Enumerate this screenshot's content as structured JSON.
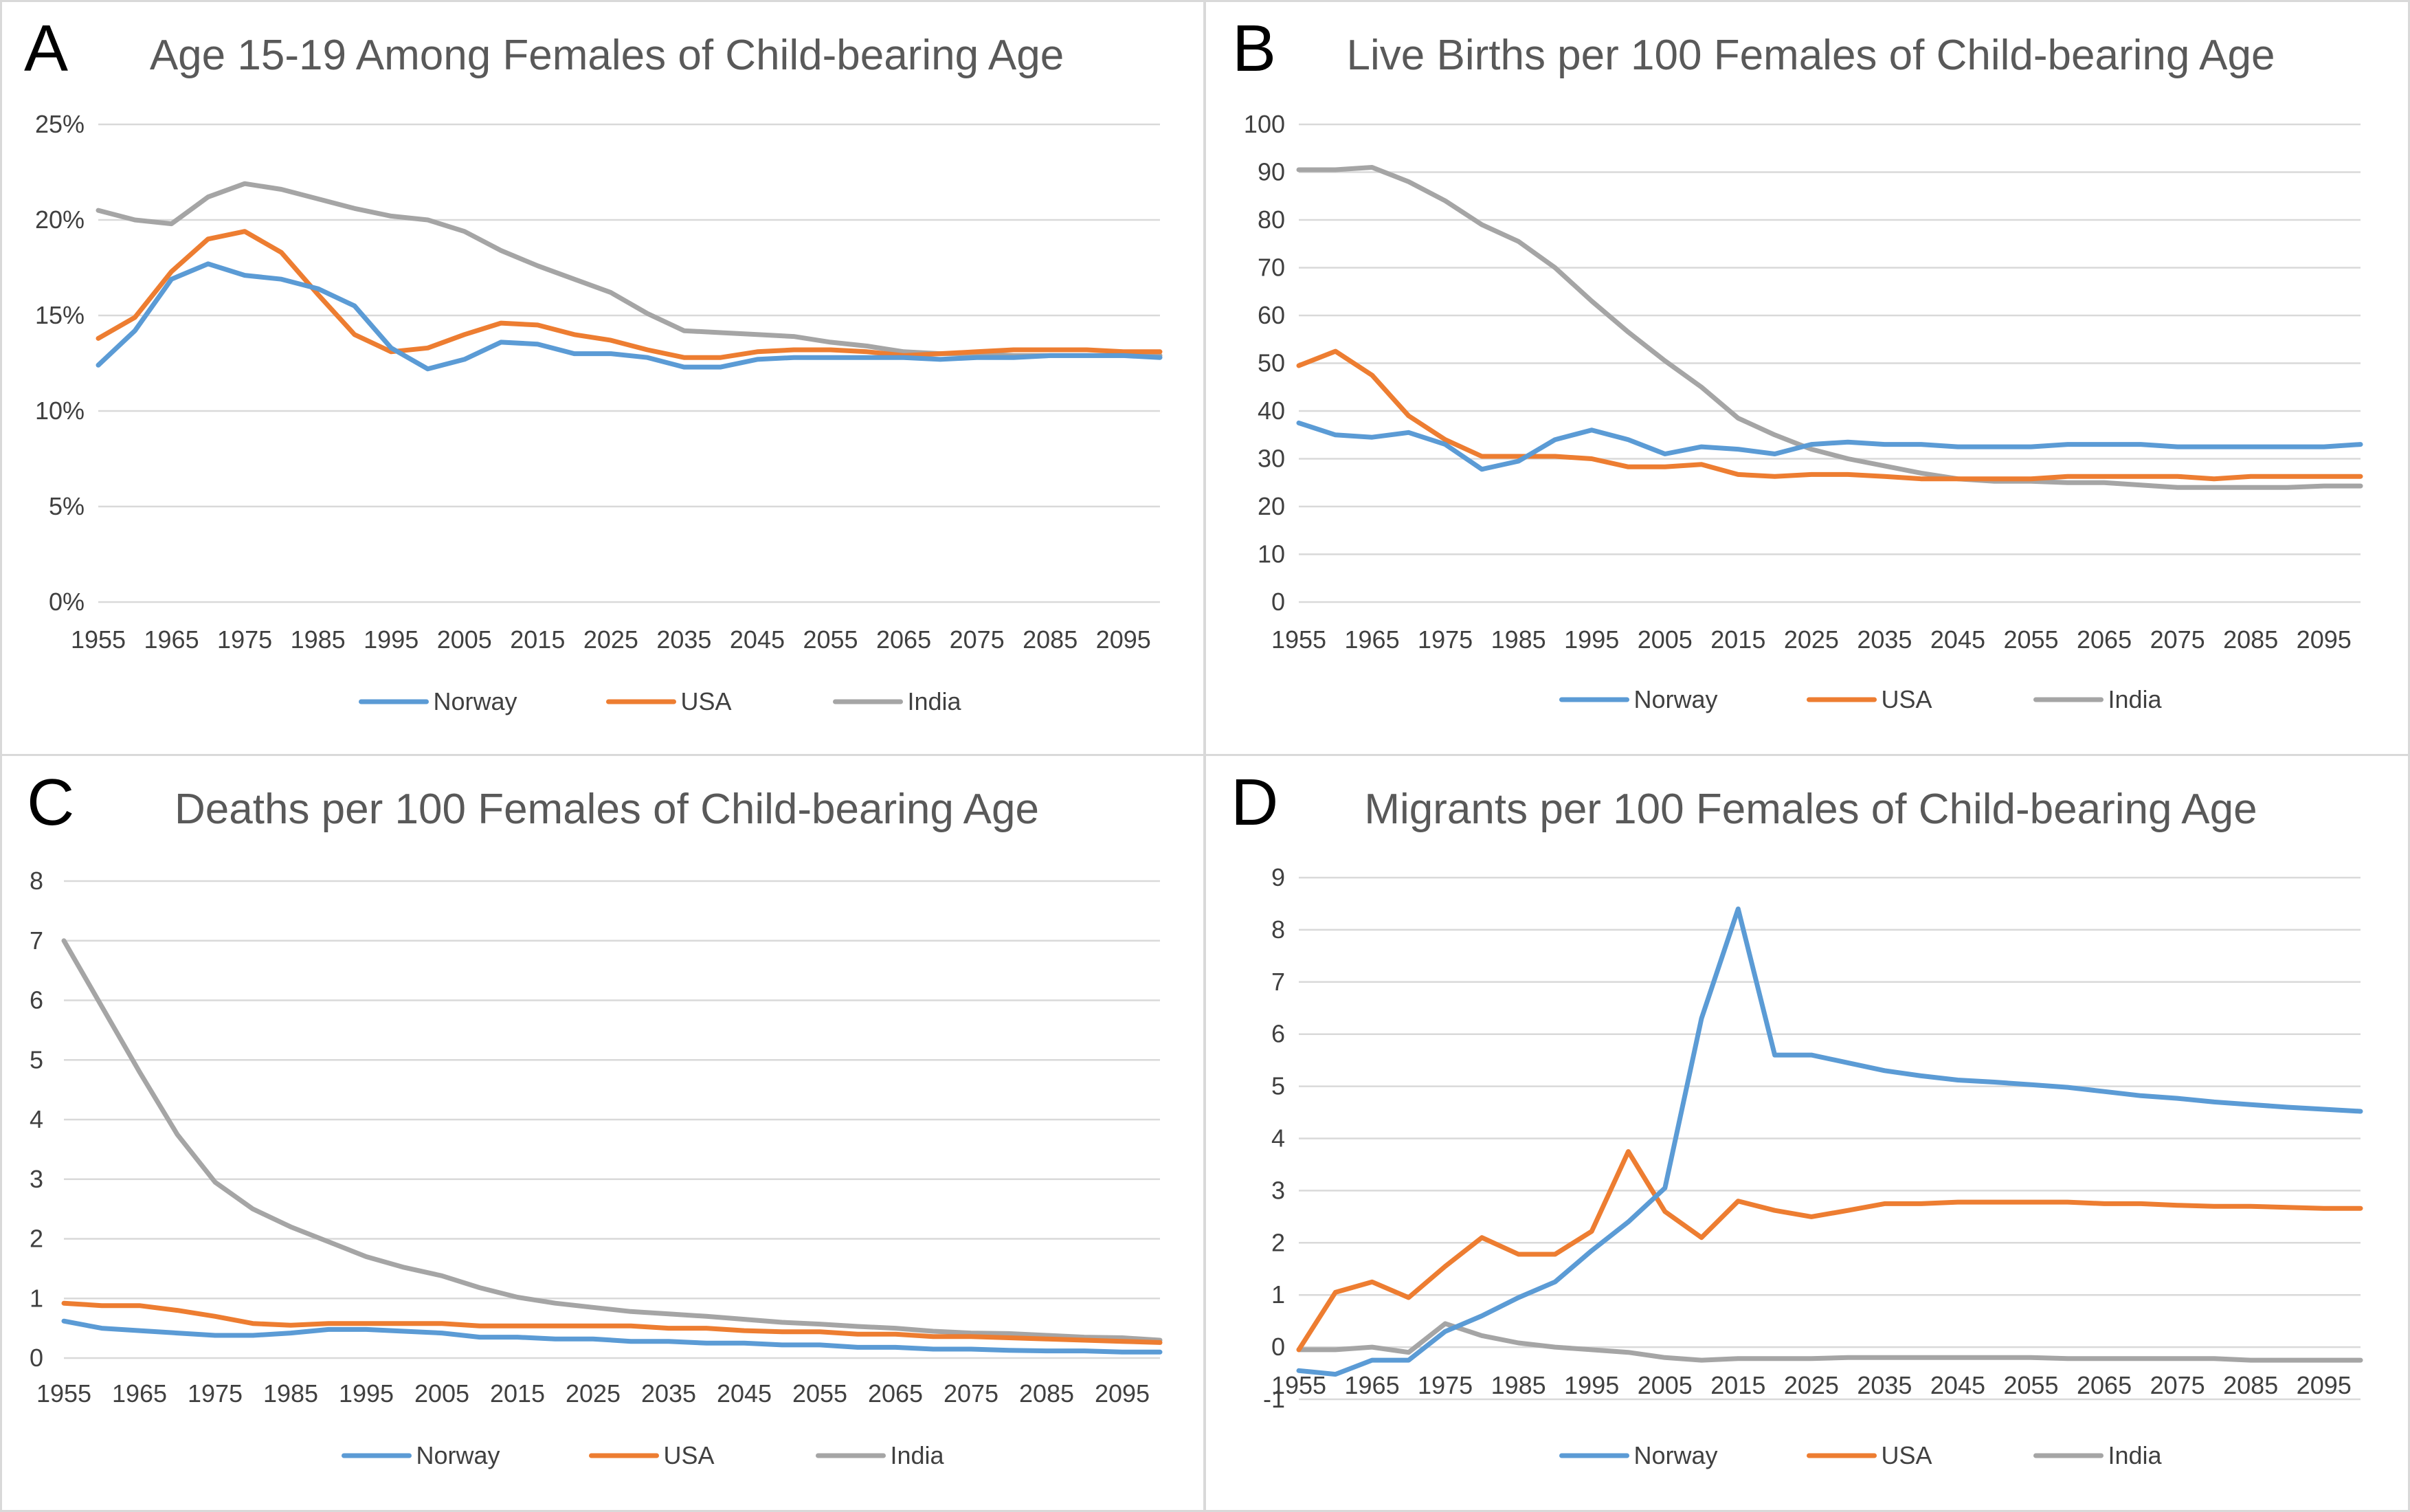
{
  "colors": {
    "Norway": "#5b9bd5",
    "USA": "#ed7d31",
    "India": "#a5a5a5"
  },
  "chart_data": [
    {
      "panel_label": "A",
      "type": "line",
      "title": "Age 15-19 Among Females of Child-bearing Age",
      "x": [
        1955,
        1960,
        1965,
        1970,
        1975,
        1980,
        1985,
        1990,
        1995,
        2000,
        2005,
        2010,
        2015,
        2020,
        2025,
        2030,
        2035,
        2040,
        2045,
        2050,
        2055,
        2060,
        2065,
        2070,
        2075,
        2080,
        2085,
        2090,
        2095,
        2100
      ],
      "x_tick_labels": [
        "1955",
        "1965",
        "1975",
        "1985",
        "1995",
        "2005",
        "2015",
        "2025",
        "2035",
        "2045",
        "2055",
        "2065",
        "2075",
        "2085",
        "2095"
      ],
      "y_ticks": [
        0,
        5,
        10,
        15,
        20,
        25
      ],
      "y_tick_labels": [
        "0%",
        "5%",
        "10%",
        "15%",
        "20%",
        "25%"
      ],
      "ylim": [
        0,
        25
      ],
      "grid": true,
      "legend_position": "bottom",
      "series": [
        {
          "name": "Norway",
          "values": [
            12.4,
            14.2,
            16.9,
            17.7,
            17.1,
            16.9,
            16.4,
            15.5,
            13.3,
            12.2,
            12.7,
            13.6,
            13.5,
            13.0,
            13.0,
            12.8,
            12.3,
            12.3,
            12.7,
            12.8,
            12.8,
            12.8,
            12.8,
            12.7,
            12.8,
            12.8,
            12.9,
            12.9,
            12.9,
            12.8
          ]
        },
        {
          "name": "USA",
          "values": [
            13.8,
            14.9,
            17.3,
            19.0,
            19.4,
            18.3,
            16.1,
            14.0,
            13.1,
            13.3,
            14.0,
            14.6,
            14.5,
            14.0,
            13.7,
            13.2,
            12.8,
            12.8,
            13.1,
            13.2,
            13.2,
            13.1,
            12.9,
            13.0,
            13.1,
            13.2,
            13.2,
            13.2,
            13.1,
            13.1
          ]
        },
        {
          "name": "India",
          "values": [
            20.5,
            20.0,
            19.8,
            21.2,
            21.9,
            21.6,
            21.1,
            20.6,
            20.2,
            20.0,
            19.4,
            18.4,
            17.6,
            16.9,
            16.2,
            15.1,
            14.2,
            14.1,
            14.0,
            13.9,
            13.6,
            13.4,
            13.1,
            13.0,
            13.0,
            12.9,
            12.9,
            12.9,
            12.9,
            12.9
          ]
        }
      ]
    },
    {
      "panel_label": "B",
      "type": "line",
      "title": "Live Births per 100 Females of Child-bearing Age",
      "x": [
        1955,
        1960,
        1965,
        1970,
        1975,
        1980,
        1985,
        1990,
        1995,
        2000,
        2005,
        2010,
        2015,
        2020,
        2025,
        2030,
        2035,
        2040,
        2045,
        2050,
        2055,
        2060,
        2065,
        2070,
        2075,
        2080,
        2085,
        2090,
        2095,
        2100
      ],
      "x_tick_labels": [
        "1955",
        "1965",
        "1975",
        "1985",
        "1995",
        "2005",
        "2015",
        "2025",
        "2035",
        "2045",
        "2055",
        "2065",
        "2075",
        "2085",
        "2095"
      ],
      "y_ticks": [
        0,
        10,
        20,
        30,
        40,
        50,
        60,
        70,
        80,
        90,
        100
      ],
      "y_tick_labels": [
        "0",
        "10",
        "20",
        "30",
        "40",
        "50",
        "60",
        "70",
        "80",
        "90",
        "100"
      ],
      "ylim": [
        0,
        100
      ],
      "grid": true,
      "legend_position": "bottom",
      "series": [
        {
          "name": "Norway",
          "values": [
            37.5,
            35.0,
            34.5,
            35.5,
            33.0,
            27.8,
            29.5,
            34.0,
            36.0,
            34.0,
            31.0,
            32.5,
            32.0,
            31.0,
            33.0,
            33.5,
            33.0,
            33.0,
            32.5,
            32.5,
            32.5,
            33.0,
            33.0,
            33.0,
            32.5,
            32.5,
            32.5,
            32.5,
            32.5,
            33.0
          ]
        },
        {
          "name": "USA",
          "values": [
            49.5,
            52.5,
            47.5,
            39.0,
            34.0,
            30.5,
            30.5,
            30.5,
            30.0,
            28.3,
            28.3,
            28.8,
            26.7,
            26.3,
            26.7,
            26.7,
            26.3,
            25.8,
            25.8,
            25.8,
            25.8,
            26.3,
            26.3,
            26.3,
            26.3,
            25.8,
            26.3,
            26.3,
            26.3,
            26.3
          ]
        },
        {
          "name": "India",
          "values": [
            90.5,
            90.5,
            91.0,
            88.0,
            84.0,
            79.0,
            75.5,
            70.0,
            63.0,
            56.5,
            50.5,
            45.0,
            38.5,
            35.0,
            32.0,
            30.0,
            28.5,
            27.0,
            25.8,
            25.3,
            25.3,
            25.0,
            25.0,
            24.5,
            24.0,
            24.0,
            24.0,
            24.0,
            24.3,
            24.3
          ]
        }
      ]
    },
    {
      "panel_label": "C",
      "type": "line",
      "title": "Deaths per 100 Females of Child-bearing Age",
      "x": [
        1955,
        1960,
        1965,
        1970,
        1975,
        1980,
        1985,
        1990,
        1995,
        2000,
        2005,
        2010,
        2015,
        2020,
        2025,
        2030,
        2035,
        2040,
        2045,
        2050,
        2055,
        2060,
        2065,
        2070,
        2075,
        2080,
        2085,
        2090,
        2095,
        2100
      ],
      "x_tick_labels": [
        "1955",
        "1965",
        "1975",
        "1985",
        "1995",
        "2005",
        "2015",
        "2025",
        "2035",
        "2045",
        "2055",
        "2065",
        "2075",
        "2085",
        "2095"
      ],
      "y_ticks": [
        0,
        1,
        2,
        3,
        4,
        5,
        6,
        7,
        8
      ],
      "y_tick_labels": [
        "0",
        "1",
        "2",
        "3",
        "4",
        "5",
        "6",
        "7",
        "8"
      ],
      "ylim": [
        0,
        8
      ],
      "grid": true,
      "legend_position": "bottom",
      "series": [
        {
          "name": "Norway",
          "values": [
            0.62,
            0.5,
            0.46,
            0.42,
            0.38,
            0.38,
            0.42,
            0.48,
            0.48,
            0.45,
            0.42,
            0.35,
            0.35,
            0.32,
            0.32,
            0.28,
            0.28,
            0.25,
            0.25,
            0.22,
            0.22,
            0.18,
            0.18,
            0.15,
            0.15,
            0.13,
            0.12,
            0.12,
            0.1,
            0.1
          ]
        },
        {
          "name": "USA",
          "values": [
            0.92,
            0.88,
            0.88,
            0.8,
            0.7,
            0.58,
            0.55,
            0.58,
            0.58,
            0.58,
            0.58,
            0.54,
            0.54,
            0.54,
            0.54,
            0.54,
            0.5,
            0.5,
            0.46,
            0.44,
            0.44,
            0.4,
            0.4,
            0.36,
            0.36,
            0.34,
            0.32,
            0.3,
            0.28,
            0.26
          ]
        },
        {
          "name": "India",
          "values": [
            7.0,
            5.9,
            4.8,
            3.75,
            2.95,
            2.5,
            2.2,
            1.95,
            1.7,
            1.52,
            1.38,
            1.18,
            1.02,
            0.92,
            0.85,
            0.78,
            0.74,
            0.7,
            0.65,
            0.6,
            0.57,
            0.53,
            0.5,
            0.45,
            0.42,
            0.41,
            0.38,
            0.35,
            0.34,
            0.3
          ]
        }
      ]
    },
    {
      "panel_label": "D",
      "type": "line",
      "title": "Migrants per 100 Females of Child-bearing Age",
      "x": [
        1955,
        1960,
        1965,
        1970,
        1975,
        1980,
        1985,
        1990,
        1995,
        2000,
        2005,
        2010,
        2015,
        2020,
        2025,
        2030,
        2035,
        2040,
        2045,
        2050,
        2055,
        2060,
        2065,
        2070,
        2075,
        2080,
        2085,
        2090,
        2095,
        2100
      ],
      "x_tick_labels": [
        "1955",
        "1965",
        "1975",
        "1985",
        "1995",
        "2005",
        "2015",
        "2025",
        "2035",
        "2045",
        "2055",
        "2065",
        "2075",
        "2085",
        "2095"
      ],
      "y_ticks": [
        -1,
        0,
        1,
        2,
        3,
        4,
        5,
        6,
        7,
        8,
        9
      ],
      "y_tick_labels": [
        "-1",
        "0",
        "1",
        "2",
        "3",
        "4",
        "5",
        "6",
        "7",
        "8",
        "9"
      ],
      "ylim": [
        -1,
        9
      ],
      "grid": true,
      "legend_position": "bottom",
      "series": [
        {
          "name": "Norway",
          "values": [
            -0.45,
            -0.52,
            -0.25,
            -0.25,
            0.3,
            0.6,
            0.95,
            1.25,
            1.85,
            2.4,
            3.05,
            6.3,
            8.4,
            5.6,
            5.6,
            5.45,
            5.3,
            5.2,
            5.12,
            5.08,
            5.03,
            4.98,
            4.9,
            4.82,
            4.77,
            4.7,
            4.65,
            4.6,
            4.56,
            4.52
          ]
        },
        {
          "name": "USA",
          "values": [
            -0.05,
            1.05,
            1.25,
            0.95,
            1.55,
            2.1,
            1.78,
            1.78,
            2.22,
            3.75,
            2.6,
            2.1,
            2.8,
            2.62,
            2.5,
            2.62,
            2.75,
            2.75,
            2.78,
            2.78,
            2.78,
            2.78,
            2.75,
            2.75,
            2.72,
            2.7,
            2.7,
            2.68,
            2.66,
            2.66
          ]
        },
        {
          "name": "India",
          "values": [
            -0.05,
            -0.05,
            0.0,
            -0.1,
            0.45,
            0.22,
            0.08,
            0.0,
            -0.05,
            -0.1,
            -0.2,
            -0.25,
            -0.22,
            -0.22,
            -0.22,
            -0.2,
            -0.2,
            -0.2,
            -0.2,
            -0.2,
            -0.2,
            -0.22,
            -0.22,
            -0.22,
            -0.22,
            -0.22,
            -0.25,
            -0.25,
            -0.25,
            -0.25
          ]
        }
      ]
    }
  ]
}
